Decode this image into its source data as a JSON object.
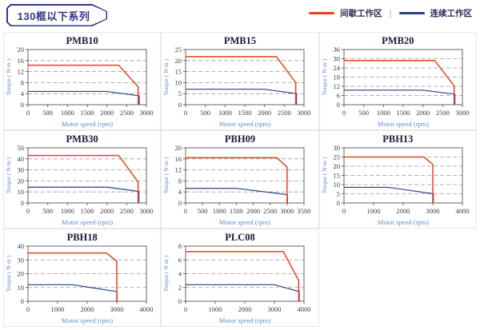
{
  "header": {
    "title": "130框以下系列",
    "legend": [
      {
        "name": "intermittent-zone",
        "label": "间歇工作区",
        "color": "#e8421c"
      },
      {
        "name": "continuous-zone",
        "label": "连续工作区",
        "color": "#2b4182"
      }
    ],
    "legend_separator": "|"
  },
  "colors": {
    "intermittent": "#e8421c",
    "continuous": "#2b4182",
    "grid_line": "#9a9a9a",
    "plot_border": "#666666",
    "tick_text": "#3a3a3a",
    "axis_label_text": "#5f8bc7",
    "title_text": "#1a1a38",
    "tag_border": "#34348c",
    "cell_border": "#e8e8e8"
  },
  "chart_data": [
    {
      "type": "line",
      "title": "PMB10",
      "xlabel": "Motor speed (rpm)",
      "ylabel": "Torque ( N·m )",
      "xlim": [
        0,
        3000
      ],
      "xstep": 500,
      "ylim": [
        0,
        20
      ],
      "ystep": 4,
      "grid": "dashed-horizontal",
      "series": [
        {
          "name": "间歇工作区",
          "color_key": "intermittent",
          "points": [
            [
              0,
              14.3
            ],
            [
              2300,
              14.3
            ],
            [
              2790,
              6.5
            ],
            [
              2790,
              0
            ]
          ]
        },
        {
          "name": "连续工作区",
          "color_key": "continuous",
          "points": [
            [
              0,
              4.8
            ],
            [
              2000,
              4.8
            ],
            [
              2820,
              3.2
            ],
            [
              2820,
              0
            ]
          ]
        }
      ]
    },
    {
      "type": "line",
      "title": "PMB15",
      "xlabel": "Motor speed (rpm)",
      "ylabel": "Torque ( N·m )",
      "xlim": [
        0,
        3000
      ],
      "xstep": 500,
      "ylim": [
        0,
        25
      ],
      "ystep": 5,
      "grid": "dashed-horizontal",
      "series": [
        {
          "name": "间歇工作区",
          "color_key": "intermittent",
          "points": [
            [
              0,
              21.8
            ],
            [
              2300,
              21.8
            ],
            [
              2790,
              10
            ],
            [
              2790,
              0
            ]
          ]
        },
        {
          "name": "连续工作区",
          "color_key": "continuous",
          "points": [
            [
              0,
              7
            ],
            [
              2000,
              7
            ],
            [
              2810,
              5
            ],
            [
              2810,
              0
            ]
          ]
        }
      ]
    },
    {
      "type": "line",
      "title": "PMB20",
      "xlabel": "Motor speed (rpm)",
      "ylabel": "Torque ( N·m )",
      "xlim": [
        0,
        3000
      ],
      "xstep": 500,
      "ylim": [
        0,
        36
      ],
      "ystep": 6,
      "grid": "dashed-horizontal",
      "series": [
        {
          "name": "间歇工作区",
          "color_key": "intermittent",
          "points": [
            [
              0,
              28.8
            ],
            [
              2300,
              28.8
            ],
            [
              2790,
              12.3
            ],
            [
              2790,
              0
            ]
          ]
        },
        {
          "name": "连续工作区",
          "color_key": "continuous",
          "points": [
            [
              0,
              9.5
            ],
            [
              2000,
              9.5
            ],
            [
              2810,
              6.8
            ],
            [
              2810,
              0
            ]
          ]
        }
      ]
    },
    {
      "type": "line",
      "title": "PMB30",
      "xlabel": "Motor speed (rpm)",
      "ylabel": "Torque ( N·m )",
      "xlim": [
        0,
        3000
      ],
      "xstep": 500,
      "ylim": [
        0,
        50
      ],
      "ystep": 10,
      "grid": "dashed-horizontal",
      "series": [
        {
          "name": "间歇工作区",
          "color_key": "intermittent",
          "points": [
            [
              0,
              43
            ],
            [
              2300,
              43
            ],
            [
              2790,
              19
            ],
            [
              2790,
              0
            ]
          ]
        },
        {
          "name": "连续工作区",
          "color_key": "continuous",
          "points": [
            [
              0,
              14.3
            ],
            [
              2000,
              14.3
            ],
            [
              2810,
              10.5
            ],
            [
              2810,
              0
            ]
          ]
        }
      ]
    },
    {
      "type": "line",
      "title": "PBH09",
      "xlabel": "Motor speed (rpm)",
      "ylabel": "Torque ( N·m )",
      "xlim": [
        0,
        3500
      ],
      "xstep": 500,
      "ylim": [
        0,
        20
      ],
      "ystep": 4,
      "grid": "dashed-horizontal",
      "series": [
        {
          "name": "间歇工作区",
          "color_key": "intermittent",
          "points": [
            [
              0,
              16.4
            ],
            [
              2700,
              16.4
            ],
            [
              3000,
              13
            ],
            [
              3000,
              0
            ]
          ]
        },
        {
          "name": "连续工作区",
          "color_key": "continuous",
          "points": [
            [
              0,
              5.3
            ],
            [
              1500,
              5.3
            ],
            [
              3010,
              3
            ],
            [
              3010,
              0
            ]
          ]
        }
      ]
    },
    {
      "type": "line",
      "title": "PBH13",
      "xlabel": "Motor speed (rpm)",
      "ylabel": "Torque ( N·m )",
      "xlim": [
        0,
        4000
      ],
      "xstep": 1000,
      "ylim": [
        0,
        30
      ],
      "ystep": 5,
      "grid": "dashed-horizontal",
      "series": [
        {
          "name": "间歇工作区",
          "color_key": "intermittent",
          "points": [
            [
              0,
              25
            ],
            [
              2700,
              25
            ],
            [
              3000,
              21
            ],
            [
              3000,
              0
            ]
          ]
        },
        {
          "name": "连续工作区",
          "color_key": "continuous",
          "points": [
            [
              0,
              8.5
            ],
            [
              1500,
              8.5
            ],
            [
              3020,
              5
            ],
            [
              3020,
              0
            ]
          ]
        }
      ]
    },
    {
      "type": "line",
      "title": "PBH18",
      "xlabel": "Motor speed (rpm)",
      "ylabel": "Torque ( N·m )",
      "xlim": [
        0,
        4000
      ],
      "xstep": 1000,
      "ylim": [
        0,
        40
      ],
      "ystep": 10,
      "grid": "dashed-horizontal",
      "series": [
        {
          "name": "间歇工作区",
          "color_key": "intermittent",
          "points": [
            [
              0,
              35
            ],
            [
              2650,
              35
            ],
            [
              3000,
              29
            ],
            [
              3000,
              0
            ]
          ]
        },
        {
          "name": "连续工作区",
          "color_key": "continuous",
          "points": [
            [
              0,
              12
            ],
            [
              1500,
              12
            ],
            [
              3010,
              7
            ],
            [
              3010,
              0
            ]
          ]
        }
      ]
    },
    {
      "type": "line",
      "title": "PLC08",
      "xlabel": "Motor speed (rpm)",
      "ylabel": "Torque ( N·m )",
      "xlim": [
        0,
        4000
      ],
      "xstep": 1000,
      "ylim": [
        0,
        8
      ],
      "ystep": 2,
      "grid": "dashed-horizontal",
      "series": [
        {
          "name": "间歇工作区",
          "color_key": "intermittent",
          "points": [
            [
              0,
              7.2
            ],
            [
              3300,
              7.2
            ],
            [
              3820,
              3
            ],
            [
              3820,
              0
            ]
          ]
        },
        {
          "name": "连续工作区",
          "color_key": "continuous",
          "points": [
            [
              0,
              2.4
            ],
            [
              3000,
              2.4
            ],
            [
              3840,
              1.4
            ],
            [
              3840,
              0
            ]
          ]
        }
      ]
    }
  ]
}
